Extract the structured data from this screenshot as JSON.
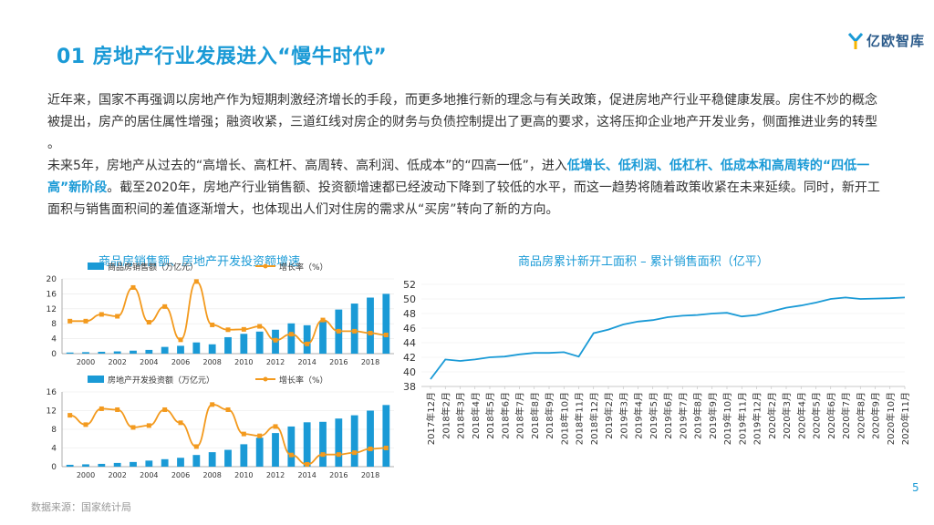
{
  "title": "01 房地产行业发展进入“慢牛时代”",
  "logo_text": "亿欧智库",
  "para1": "近年来，国家不再强调以房地产作为短期刺激经济增长的手段，而更多地推行新的理念与有关政策，促进房地产行业平稳健康发展。房住不炒的概念被提出，房产的居住属性增强；融资收紧，三道红线对房企的财务与负债控制提出了更高的要求，这将压抑企业地产开发业务，侧面推进业务的转型 。",
  "para2_a": "未来5年，房地产从过去的“高增长、高杠杆、高周转、高利润、低成本”的“四高一低”，进入",
  "para2_hl": "低增长、低利润、低杠杆、低成本和高周转的“四低一高”新阶段",
  "para2_b": "。截至2020年，房地产行业销售额、投资额增速都已经波动下降到了较低的水平，而这一趋势将随着政策收紧在未来延续。同时，新开工面积与销售面积间的差值逐渐增大，也体现出人们对住房的需求从“买房”转向了新的方向。",
  "left_chart_title": "商品房销售额、房地产开发投资额增速",
  "right_chart_title": "商品房累计新开工面积 – 累计销售面积（亿平）",
  "page_number": "5",
  "source": "数据来源：国家统计局",
  "colors": {
    "bar": "#1a9ad6",
    "line": "#f39a1e",
    "accent": "#1a9ad6"
  },
  "chart_data": [
    {
      "type": "bar",
      "legend": [
        "商品房销售额（万亿元）",
        "增长率（%）"
      ],
      "x": [
        1999,
        2000,
        2001,
        2002,
        2003,
        2004,
        2005,
        2006,
        2007,
        2008,
        2009,
        2010,
        2011,
        2012,
        2013,
        2014,
        2015,
        2016,
        2017,
        2018,
        2019
      ],
      "xticks": [
        "2000",
        "2002",
        "2004",
        "2006",
        "2008",
        "2010",
        "2012",
        "2014",
        "2016",
        "2018"
      ],
      "ylim": [
        0,
        20
      ],
      "yticks": [
        "0",
        "4",
        "8",
        "12",
        "16",
        "20"
      ],
      "series": [
        {
          "name": "商品房销售额（万亿元）",
          "kind": "bar",
          "values": [
            0.3,
            0.4,
            0.5,
            0.6,
            0.8,
            1.0,
            1.8,
            2.1,
            3.0,
            2.5,
            4.4,
            5.3,
            5.9,
            6.4,
            8.1,
            7.6,
            8.7,
            11.8,
            13.4,
            15.0,
            16.0
          ]
        },
        {
          "name": "增长率（%）",
          "kind": "line",
          "values": [
            8.7,
            8.7,
            10.5,
            10,
            17.7,
            8.4,
            12.6,
            3.7,
            19.3,
            7.7,
            6.4,
            6.5,
            7.3,
            3.6,
            5.2,
            2.6,
            9,
            6,
            6,
            5.5,
            5
          ]
        }
      ]
    },
    {
      "type": "bar",
      "legend": [
        "房地产开发投资额（万亿元）",
        "增长率（%）"
      ],
      "x": [
        1999,
        2000,
        2001,
        2002,
        2003,
        2004,
        2005,
        2006,
        2007,
        2008,
        2009,
        2010,
        2011,
        2012,
        2013,
        2014,
        2015,
        2016,
        2017,
        2018,
        2019
      ],
      "xticks": [
        "2000",
        "2002",
        "2004",
        "2006",
        "2008",
        "2010",
        "2012",
        "2014",
        "2016",
        "2018"
      ],
      "ylim": [
        0,
        16
      ],
      "yticks": [
        "0",
        "4",
        "8",
        "12",
        "16"
      ],
      "series": [
        {
          "name": "房地产开发投资额（万亿元）",
          "kind": "bar",
          "values": [
            0.4,
            0.5,
            0.6,
            0.8,
            1.0,
            1.3,
            1.6,
            1.9,
            2.5,
            3.1,
            3.6,
            4.8,
            6.2,
            7.2,
            8.6,
            9.5,
            9.6,
            10.3,
            11.0,
            12.0,
            13.2
          ]
        },
        {
          "name": "增长率（%）",
          "kind": "line",
          "values": [
            11,
            9,
            12.4,
            12.2,
            8.4,
            8.8,
            12.2,
            9.4,
            4.3,
            13.3,
            12.2,
            7,
            6.6,
            8.6,
            2.5,
            0.5,
            2.6,
            2.6,
            3,
            3.8,
            4
          ]
        }
      ]
    },
    {
      "type": "line",
      "xticks": [
        "2017年12月",
        "2018年2月",
        "2018年3月",
        "2018年4月",
        "2018年5月",
        "2018年6月",
        "2018年7月",
        "2018年8月",
        "2018年9月",
        "2018年10月",
        "2018年11月",
        "2018年12月",
        "2019年2月",
        "2019年3月",
        "2019年4月",
        "2019年5月",
        "2019年6月",
        "2019年7月",
        "2019年8月",
        "2019年9月",
        "2019年10月",
        "2019年11月",
        "2019年12月",
        "2020年2月",
        "2020年3月",
        "2020年4月",
        "2020年5月",
        "2020年6月",
        "2020年7月",
        "2020年8月",
        "2020年9月",
        "2020年10月",
        "2020年11月"
      ],
      "ylim": [
        38,
        52
      ],
      "yticks": [
        "38",
        "40",
        "42",
        "44",
        "46",
        "48",
        "50",
        "52"
      ],
      "series": [
        {
          "name": "",
          "values": [
            39,
            41.7,
            41.5,
            41.7,
            42,
            42.1,
            42.4,
            42.6,
            42.6,
            42.7,
            42.1,
            45.3,
            45.8,
            46.5,
            46.9,
            47.1,
            47.5,
            47.7,
            47.8,
            48,
            48.1,
            47.6,
            47.8,
            48.3,
            48.8,
            49.1,
            49.5,
            50,
            50.2,
            50,
            50.05,
            50.1,
            50.2
          ]
        }
      ]
    }
  ]
}
